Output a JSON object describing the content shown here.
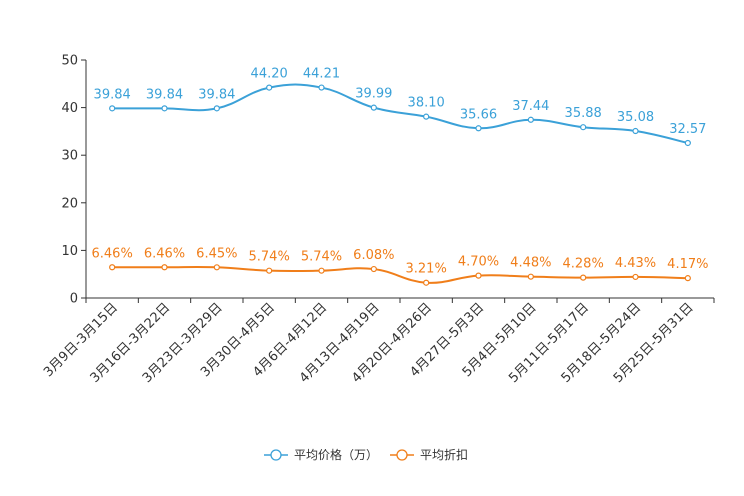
{
  "chart_data": {
    "type": "line",
    "title": "",
    "xlabel": "",
    "ylabel": "",
    "ylim": [
      0,
      50
    ],
    "yticks": [
      0,
      10,
      20,
      30,
      40,
      50
    ],
    "grid": false,
    "legend_position": "bottom-center",
    "categories": [
      "3月9日-3月15日",
      "3月16日-3月22日",
      "3月23日-3月29日",
      "3月30日-4月5日",
      "4月6日-4月12日",
      "4月13日-4月19日",
      "4月20日-4月26日",
      "4月27日-5月3日",
      "5月4日-5月10日",
      "5月11日-5月17日",
      "5月18日-5月24日",
      "5月25日-5月31日"
    ],
    "series": [
      {
        "name": "平均价格（万）",
        "color": "#3ba1d8",
        "values": [
          39.84,
          39.84,
          39.84,
          44.2,
          44.21,
          39.99,
          38.1,
          35.66,
          37.44,
          35.88,
          35.08,
          32.57
        ],
        "labels": [
          "39.84",
          "39.84",
          "39.84",
          "44.20",
          "44.21",
          "39.99",
          "38.10",
          "35.66",
          "37.44",
          "35.88",
          "35.08",
          "32.57"
        ]
      },
      {
        "name": "平均折扣",
        "color": "#f07e1a",
        "values": [
          6.46,
          6.46,
          6.45,
          5.74,
          5.74,
          6.08,
          3.21,
          4.7,
          4.48,
          4.28,
          4.43,
          4.17
        ],
        "labels": [
          "6.46%",
          "6.46%",
          "6.45%",
          "5.74%",
          "5.74%",
          "6.08%",
          "3.21%",
          "4.70%",
          "4.48%",
          "4.28%",
          "4.43%",
          "4.17%"
        ]
      }
    ]
  }
}
